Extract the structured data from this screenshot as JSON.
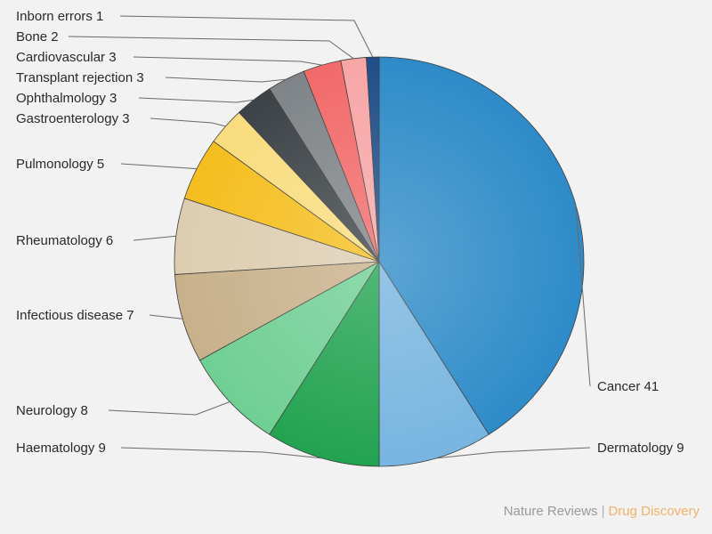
{
  "chart_data": {
    "type": "pie",
    "start": "12 o'clock",
    "direction": "clockwise",
    "slices": [
      {
        "category": "Cancer",
        "value": 41,
        "color": "#2e8bc8",
        "label": "Cancer 41"
      },
      {
        "category": "Dermatology",
        "value": 9,
        "color": "#78b5e0",
        "label": "Dermatology 9"
      },
      {
        "category": "Haematology",
        "value": 9,
        "color": "#22a350",
        "label": "Haematology 9"
      },
      {
        "category": "Neurology",
        "value": 8,
        "color": "#6fcf93",
        "label": "Neurology 8"
      },
      {
        "category": "Infectious disease",
        "value": 7,
        "color": "#c8b08a",
        "label": "Infectious disease 7"
      },
      {
        "category": "Rheumatology",
        "value": 6,
        "color": "#ddcdb0",
        "label": "Rheumatology 6"
      },
      {
        "category": "Pulmonology",
        "value": 5,
        "color": "#f5be1e",
        "label": "Pulmonology 5"
      },
      {
        "category": "Gastroenterology",
        "value": 3,
        "color": "#f8dc7e",
        "label": "Gastroenterology 3"
      },
      {
        "category": "Ophthalmology",
        "value": 3,
        "color": "#3c4246",
        "label": "Ophthalmology 3"
      },
      {
        "category": "Transplant rejection",
        "value": 3,
        "color": "#7f8488",
        "label": "Transplant rejection 3"
      },
      {
        "category": "Cardiovascular",
        "value": 3,
        "color": "#f26a6a",
        "label": "Cardiovascular 3"
      },
      {
        "category": "Bone",
        "value": 2,
        "color": "#f7a6a6",
        "label": "Bone 2"
      },
      {
        "category": "Inborn errors",
        "value": 1,
        "color": "#1f4e8a",
        "label": "Inborn errors 1"
      }
    ]
  },
  "credit": {
    "journal": "Nature Reviews",
    "separator": "|",
    "section": "Drug Discovery",
    "journal_color": "#9a9a9a",
    "section_color": "#f0b36a"
  }
}
